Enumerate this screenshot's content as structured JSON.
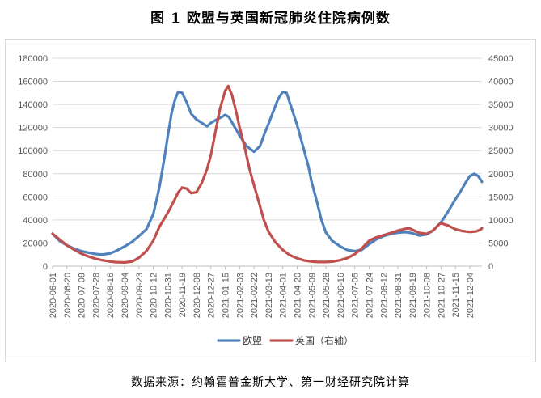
{
  "figure": {
    "title": "图 1 欧盟与英国新冠肺炎住院病例数",
    "source": "数据来源：约翰霍普金斯大学、第一财经研究院计算"
  },
  "chart_data": {
    "type": "line",
    "title": "",
    "x_tick_labels": [
      "2020-06-01",
      "2020-06-20",
      "2020-07-09",
      "2020-07-28",
      "2020-08-16",
      "2020-09-04",
      "2020-09-23",
      "2020-10-12",
      "2020-10-31",
      "2020-11-19",
      "2020-12-08",
      "2020-12-27",
      "2021-01-15",
      "2021-02-03",
      "2021-02-22",
      "2021-03-13",
      "2021-04-01",
      "2021-04-20",
      "2021-05-09",
      "2021-05-28",
      "2021-06-16",
      "2021-07-05",
      "2021-07-24",
      "2021-08-12",
      "2021-08-31",
      "2021-09-19",
      "2021-10-08",
      "2021-10-27",
      "2021-11-15",
      "2021-12-04"
    ],
    "x_range": [
      "2020-06-01",
      "2021-12-20"
    ],
    "y_left": {
      "min": 0,
      "max": 180000,
      "step": 20000,
      "ticks": [
        "0",
        "20000",
        "40000",
        "60000",
        "80000",
        "100000",
        "120000",
        "140000",
        "160000",
        "180000"
      ]
    },
    "y_right": {
      "min": 0,
      "max": 45000,
      "step": 5000,
      "ticks": [
        "0",
        "5000",
        "10000",
        "15000",
        "20000",
        "25000",
        "30000",
        "35000",
        "40000",
        "45000"
      ]
    },
    "grid": "horizontal",
    "legend_position": "bottom",
    "series": [
      {
        "name": "欧盟",
        "axis": "left",
        "color": "#4f81bd",
        "points": [
          [
            "2020-06-01",
            28000
          ],
          [
            "2020-06-10",
            22000
          ],
          [
            "2020-06-20",
            18000
          ],
          [
            "2020-06-30",
            15000
          ],
          [
            "2020-07-09",
            13000
          ],
          [
            "2020-07-20",
            11500
          ],
          [
            "2020-07-28",
            10500
          ],
          [
            "2020-08-05",
            10000
          ],
          [
            "2020-08-16",
            11000
          ],
          [
            "2020-08-25",
            13500
          ],
          [
            "2020-09-04",
            17000
          ],
          [
            "2020-09-14",
            21000
          ],
          [
            "2020-09-23",
            26000
          ],
          [
            "2020-10-03",
            32000
          ],
          [
            "2020-10-12",
            45000
          ],
          [
            "2020-10-20",
            68000
          ],
          [
            "2020-10-27",
            95000
          ],
          [
            "2020-10-31",
            112000
          ],
          [
            "2020-11-05",
            132000
          ],
          [
            "2020-11-10",
            145000
          ],
          [
            "2020-11-14",
            151000
          ],
          [
            "2020-11-19",
            150000
          ],
          [
            "2020-11-25",
            142000
          ],
          [
            "2020-12-01",
            132000
          ],
          [
            "2020-12-08",
            127000
          ],
          [
            "2020-12-15",
            124000
          ],
          [
            "2020-12-22",
            121000
          ],
          [
            "2020-12-27",
            124000
          ],
          [
            "2021-01-04",
            127000
          ],
          [
            "2021-01-10",
            129000
          ],
          [
            "2021-01-15",
            131000
          ],
          [
            "2021-01-20",
            129000
          ],
          [
            "2021-01-26",
            122000
          ],
          [
            "2021-02-03",
            113000
          ],
          [
            "2021-02-12",
            104000
          ],
          [
            "2021-02-22",
            99000
          ],
          [
            "2021-03-02",
            104000
          ],
          [
            "2021-03-08",
            115000
          ],
          [
            "2021-03-13",
            123000
          ],
          [
            "2021-03-20",
            135000
          ],
          [
            "2021-03-26",
            145000
          ],
          [
            "2021-04-01",
            151000
          ],
          [
            "2021-04-06",
            150000
          ],
          [
            "2021-04-12",
            138000
          ],
          [
            "2021-04-20",
            122000
          ],
          [
            "2021-04-28",
            103000
          ],
          [
            "2021-05-05",
            86000
          ],
          [
            "2021-05-09",
            73000
          ],
          [
            "2021-05-16",
            56000
          ],
          [
            "2021-05-22",
            40000
          ],
          [
            "2021-05-28",
            29000
          ],
          [
            "2021-06-05",
            22000
          ],
          [
            "2021-06-16",
            17000
          ],
          [
            "2021-06-25",
            14000
          ],
          [
            "2021-07-05",
            13000
          ],
          [
            "2021-07-14",
            14000
          ],
          [
            "2021-07-24",
            19000
          ],
          [
            "2021-08-02",
            23000
          ],
          [
            "2021-08-12",
            26000
          ],
          [
            "2021-08-22",
            28000
          ],
          [
            "2021-08-31",
            29000
          ],
          [
            "2021-09-10",
            29500
          ],
          [
            "2021-09-19",
            28500
          ],
          [
            "2021-09-28",
            26500
          ],
          [
            "2021-10-08",
            27500
          ],
          [
            "2021-10-17",
            31000
          ],
          [
            "2021-10-27",
            38000
          ],
          [
            "2021-11-05",
            47000
          ],
          [
            "2021-11-15",
            58000
          ],
          [
            "2021-11-22",
            65000
          ],
          [
            "2021-11-29",
            73000
          ],
          [
            "2021-12-04",
            78000
          ],
          [
            "2021-12-10",
            80000
          ],
          [
            "2021-12-15",
            78000
          ],
          [
            "2021-12-20",
            73000
          ]
        ]
      },
      {
        "name": "英国（右轴）",
        "axis": "right",
        "color": "#c0504d",
        "points": [
          [
            "2020-06-01",
            7000
          ],
          [
            "2020-06-10",
            5800
          ],
          [
            "2020-06-20",
            4500
          ],
          [
            "2020-06-30",
            3500
          ],
          [
            "2020-07-09",
            2700
          ],
          [
            "2020-07-20",
            2000
          ],
          [
            "2020-07-28",
            1600
          ],
          [
            "2020-08-05",
            1300
          ],
          [
            "2020-08-16",
            1000
          ],
          [
            "2020-08-25",
            850
          ],
          [
            "2020-09-04",
            800
          ],
          [
            "2020-09-14",
            1000
          ],
          [
            "2020-09-23",
            1800
          ],
          [
            "2020-10-03",
            3300
          ],
          [
            "2020-10-12",
            5500
          ],
          [
            "2020-10-20",
            8500
          ],
          [
            "2020-10-31",
            11500
          ],
          [
            "2020-11-08",
            14000
          ],
          [
            "2020-11-14",
            16000
          ],
          [
            "2020-11-19",
            17000
          ],
          [
            "2020-11-25",
            16800
          ],
          [
            "2020-12-01",
            15800
          ],
          [
            "2020-12-08",
            16000
          ],
          [
            "2020-12-15",
            18000
          ],
          [
            "2020-12-22",
            21000
          ],
          [
            "2020-12-27",
            24000
          ],
          [
            "2021-01-02",
            29000
          ],
          [
            "2021-01-08",
            34000
          ],
          [
            "2021-01-15",
            38000
          ],
          [
            "2021-01-19",
            39000
          ],
          [
            "2021-01-24",
            37000
          ],
          [
            "2021-01-30",
            33000
          ],
          [
            "2021-02-03",
            30000
          ],
          [
            "2021-02-10",
            25500
          ],
          [
            "2021-02-16",
            21000
          ],
          [
            "2021-02-22",
            17500
          ],
          [
            "2021-03-01",
            13500
          ],
          [
            "2021-03-07",
            10000
          ],
          [
            "2021-03-13",
            7500
          ],
          [
            "2021-03-22",
            5200
          ],
          [
            "2021-04-01",
            3500
          ],
          [
            "2021-04-10",
            2400
          ],
          [
            "2021-04-20",
            1700
          ],
          [
            "2021-04-30",
            1200
          ],
          [
            "2021-05-09",
            1000
          ],
          [
            "2021-05-18",
            900
          ],
          [
            "2021-05-28",
            900
          ],
          [
            "2021-06-07",
            1000
          ],
          [
            "2021-06-16",
            1300
          ],
          [
            "2021-06-26",
            1800
          ],
          [
            "2021-07-05",
            2600
          ],
          [
            "2021-07-14",
            3800
          ],
          [
            "2021-07-24",
            5500
          ],
          [
            "2021-08-02",
            6200
          ],
          [
            "2021-08-12",
            6700
          ],
          [
            "2021-08-22",
            7200
          ],
          [
            "2021-08-31",
            7700
          ],
          [
            "2021-09-10",
            8100
          ],
          [
            "2021-09-15",
            8200
          ],
          [
            "2021-09-19",
            7900
          ],
          [
            "2021-09-28",
            7200
          ],
          [
            "2021-10-08",
            7000
          ],
          [
            "2021-10-17",
            7800
          ],
          [
            "2021-10-24",
            9000
          ],
          [
            "2021-10-27",
            9300
          ],
          [
            "2021-11-05",
            8800
          ],
          [
            "2021-11-15",
            8000
          ],
          [
            "2021-11-24",
            7600
          ],
          [
            "2021-12-04",
            7400
          ],
          [
            "2021-12-12",
            7500
          ],
          [
            "2021-12-18",
            7900
          ],
          [
            "2021-12-20",
            8200
          ]
        ]
      }
    ]
  }
}
